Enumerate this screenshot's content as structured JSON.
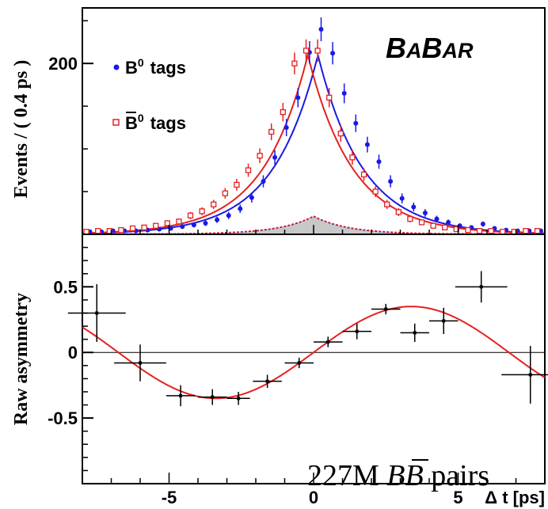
{
  "chart_data": [
    {
      "type": "scatter",
      "panel": "top",
      "ylabel": "Events / ( 0.4 ps )",
      "xlabel": "",
      "xlim": [
        -8,
        8
      ],
      "ylim": [
        0,
        265
      ],
      "y_ticks": [
        200
      ],
      "logo_parts": [
        "B",
        "A",
        "B",
        "AR"
      ],
      "legend_position": "top-left",
      "x": [
        -7.8,
        -7.4,
        -7.0,
        -6.6,
        -6.2,
        -5.8,
        -5.4,
        -5.0,
        -4.6,
        -4.2,
        -3.8,
        -3.4,
        -3.0,
        -2.6,
        -2.2,
        -1.8,
        -1.4,
        -1.0,
        -0.6,
        -0.2,
        0.2,
        0.6,
        1.0,
        1.4,
        1.8,
        2.2,
        2.6,
        3.0,
        3.4,
        3.8,
        4.2,
        4.6,
        5.0,
        5.4,
        5.8,
        6.2,
        6.6,
        7.0,
        7.4,
        7.8
      ],
      "series": [
        {
          "name": "B0 tags",
          "legend_text": "tags",
          "legend_symbol": "B",
          "legend_sup": "0",
          "color": "#1a1ae6",
          "marker": "filled-circle",
          "values": [
            3,
            3,
            4,
            4,
            4,
            5,
            6,
            7,
            9,
            11,
            13,
            17,
            22,
            30,
            43,
            62,
            90,
            125,
            160,
            213,
            240,
            212,
            165,
            130,
            105,
            85,
            62,
            42,
            32,
            25,
            18,
            14,
            10,
            8,
            12,
            7,
            5,
            4,
            4,
            4
          ]
        },
        {
          "name": "anti-B0 tags",
          "legend_text": "tags",
          "legend_symbol": "B",
          "legend_sup": "0",
          "legend_overline": true,
          "color": "#e62020",
          "marker": "open-square",
          "values": [
            3,
            4,
            4,
            5,
            7,
            8,
            10,
            13,
            15,
            22,
            27,
            35,
            48,
            58,
            75,
            92,
            120,
            143,
            200,
            215,
            215,
            160,
            118,
            90,
            70,
            50,
            35,
            26,
            18,
            14,
            10,
            8,
            6,
            5,
            4,
            4,
            3,
            3,
            4,
            4
          ]
        }
      ],
      "fit_curves": [
        {
          "name": "B0 fit",
          "color": "#1a1ae6",
          "peak": 210,
          "center": 0.15
        },
        {
          "name": "anti-B0 fit",
          "color": "#e62020",
          "peak": 210,
          "center": -0.2
        }
      ],
      "background": {
        "color": "#c8c8c8",
        "peak": 21
      }
    },
    {
      "type": "scatter",
      "panel": "bottom",
      "ylabel": "Raw asymmetry",
      "xlabel": "Δ t [ps]",
      "xlim": [
        -8,
        8
      ],
      "ylim": [
        -1.0,
        0.9
      ],
      "y_ticks": [
        0.5,
        0,
        -0.5
      ],
      "y_tick_labels": [
        "0.5",
        "0",
        "-0.5"
      ],
      "x_ticks": [
        -5,
        0,
        5
      ],
      "x_tick_labels": [
        "-5",
        "0",
        "5"
      ],
      "annotation": {
        "text_pre": "227M ",
        "text_b1": "B",
        "text_b2": "B",
        "text_post": " pairs"
      },
      "points": [
        {
          "x": -7.5,
          "y": 0.3,
          "xerr": 1.0,
          "yerr": 0.22
        },
        {
          "x": -6.0,
          "y": -0.08,
          "xerr": 0.9,
          "yerr": 0.14
        },
        {
          "x": -4.6,
          "y": -0.33,
          "xerr": 0.5,
          "yerr": 0.08
        },
        {
          "x": -3.5,
          "y": -0.34,
          "xerr": 0.5,
          "yerr": 0.06
        },
        {
          "x": -2.6,
          "y": -0.35,
          "xerr": 0.4,
          "yerr": 0.05
        },
        {
          "x": -1.6,
          "y": -0.22,
          "xerr": 0.5,
          "yerr": 0.05
        },
        {
          "x": -0.5,
          "y": -0.08,
          "xerr": 0.5,
          "yerr": 0.04
        },
        {
          "x": 0.5,
          "y": 0.08,
          "xerr": 0.5,
          "yerr": 0.04
        },
        {
          "x": 1.5,
          "y": 0.16,
          "xerr": 0.5,
          "yerr": 0.06
        },
        {
          "x": 2.5,
          "y": 0.33,
          "xerr": 0.5,
          "yerr": 0.04
        },
        {
          "x": 3.5,
          "y": 0.15,
          "xerr": 0.5,
          "yerr": 0.07
        },
        {
          "x": 4.5,
          "y": 0.24,
          "xerr": 0.5,
          "yerr": 0.1
        },
        {
          "x": 5.8,
          "y": 0.5,
          "xerr": 0.9,
          "yerr": 0.12
        },
        {
          "x": 7.5,
          "y": -0.17,
          "xerr": 1.0,
          "yerr": 0.22
        }
      ],
      "fit": {
        "color": "#e62020",
        "amplitude": 0.35,
        "frequency": 0.465
      }
    }
  ]
}
